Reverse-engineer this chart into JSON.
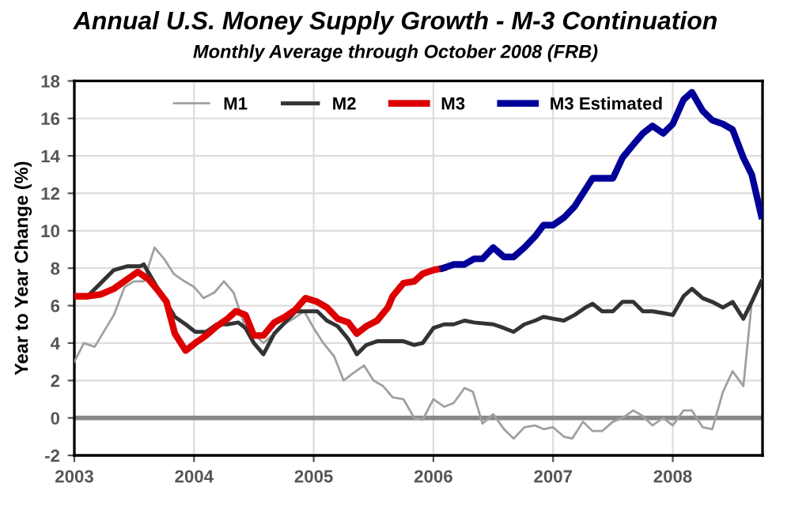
{
  "chart_data": {
    "type": "line",
    "title": "Annual U.S. Money Supply Growth - M-3 Continuation",
    "subtitle": "Monthly Average through October 2008 (FRB)",
    "ylabel": "Year to Year Change (%)",
    "xlim": [
      2003,
      2008.75
    ],
    "xticks": [
      2003,
      2004,
      2005,
      2006,
      2007,
      2008
    ],
    "ylim": [
      -2,
      18
    ],
    "yticks": [
      -2,
      0,
      2,
      4,
      6,
      8,
      10,
      12,
      14,
      16,
      18
    ],
    "grid": true,
    "legend": "top",
    "marker": "none",
    "line_style": "solid",
    "ref_lines": [
      {
        "axis": "y",
        "value": 0,
        "color": "#888888"
      }
    ],
    "series": [
      {
        "name": "M1",
        "color": "#a0a0a0",
        "x": [
          2003.0,
          2003.08,
          2003.17,
          2003.33,
          2003.42,
          2003.5,
          2003.58,
          2003.67,
          2003.75,
          2003.83,
          2003.92,
          2004.0,
          2004.08,
          2004.17,
          2004.25,
          2004.33,
          2004.42,
          2004.5,
          2004.58,
          2004.67,
          2004.75,
          2004.83,
          2004.92,
          2005.0,
          2005.08,
          2005.17,
          2005.25,
          2005.33,
          2005.42,
          2005.5,
          2005.58,
          2005.66,
          2005.75,
          2005.84,
          2005.91,
          2006.0,
          2006.09,
          2006.17,
          2006.26,
          2006.33,
          2006.41,
          2006.5,
          2006.59,
          2006.67,
          2006.76,
          2006.85,
          2006.92,
          2007.0,
          2007.09,
          2007.16,
          2007.25,
          2007.33,
          2007.41,
          2007.5,
          2007.58,
          2007.67,
          2007.75,
          2007.83,
          2007.92,
          2008.0,
          2008.09,
          2008.16,
          2008.25,
          2008.33,
          2008.42,
          2008.5,
          2008.59,
          2008.66,
          2008.74
        ],
        "values": [
          3.0,
          4.0,
          3.8,
          5.5,
          7.0,
          7.3,
          7.3,
          9.1,
          8.5,
          7.7,
          7.3,
          7.0,
          6.4,
          6.7,
          7.3,
          6.7,
          5.0,
          4.5,
          4.0,
          4.5,
          5.0,
          5.3,
          5.7,
          4.8,
          4.0,
          3.3,
          2.0,
          2.4,
          2.8,
          2.0,
          1.7,
          1.1,
          1.0,
          0.0,
          -0.1,
          1.0,
          0.6,
          0.8,
          1.6,
          1.4,
          -0.3,
          0.2,
          -0.6,
          -1.1,
          -0.5,
          -0.4,
          -0.6,
          -0.5,
          -1.0,
          -1.1,
          -0.2,
          -0.7,
          -0.7,
          -0.2,
          0.0,
          0.4,
          0.1,
          -0.4,
          0.0,
          -0.4,
          0.4,
          0.4,
          -0.5,
          -0.6,
          1.4,
          2.5,
          1.7,
          6.2,
          7.4
        ]
      },
      {
        "name": "M2",
        "color": "#333333",
        "x": [
          2003.0,
          2003.11,
          2003.22,
          2003.33,
          2003.44,
          2003.55,
          2003.58,
          2003.68,
          2003.84,
          2003.93,
          2004.01,
          2004.1,
          2004.19,
          2004.28,
          2004.37,
          2004.43,
          2004.5,
          2004.58,
          2004.67,
          2004.76,
          2004.85,
          2004.94,
          2005.03,
          2005.11,
          2005.2,
          2005.29,
          2005.36,
          2005.44,
          2005.53,
          2005.62,
          2005.75,
          2005.84,
          2005.91,
          2006.0,
          2006.09,
          2006.17,
          2006.26,
          2006.34,
          2006.5,
          2006.59,
          2006.67,
          2006.76,
          2006.85,
          2006.92,
          2007.0,
          2007.09,
          2007.18,
          2007.27,
          2007.33,
          2007.41,
          2007.5,
          2007.58,
          2007.67,
          2007.75,
          2007.83,
          2007.92,
          2008.0,
          2008.09,
          2008.16,
          2008.25,
          2008.33,
          2008.42,
          2008.5,
          2008.59,
          2008.66,
          2008.74
        ],
        "values": [
          6.5,
          6.5,
          7.2,
          7.9,
          8.1,
          8.1,
          8.2,
          7.1,
          5.4,
          5.0,
          4.6,
          4.6,
          5.0,
          5.0,
          5.1,
          4.8,
          4.0,
          3.4,
          4.5,
          5.1,
          5.7,
          5.7,
          5.7,
          5.2,
          4.9,
          4.2,
          3.4,
          3.9,
          4.1,
          4.1,
          4.1,
          3.9,
          4.0,
          4.8,
          5.0,
          5.0,
          5.2,
          5.1,
          5.0,
          4.8,
          4.6,
          5.0,
          5.2,
          5.4,
          5.3,
          5.2,
          5.5,
          5.9,
          6.1,
          5.7,
          5.7,
          6.2,
          6.2,
          5.7,
          5.7,
          5.6,
          5.5,
          6.5,
          6.9,
          6.4,
          6.2,
          5.9,
          6.2,
          5.3,
          6.2,
          7.3
        ]
      },
      {
        "name": "M3",
        "color": "#dd0000",
        "x": [
          2003.0,
          2003.11,
          2003.22,
          2003.33,
          2003.44,
          2003.53,
          2003.62,
          2003.7,
          2003.77,
          2003.84,
          2003.93,
          2004.01,
          2004.1,
          2004.19,
          2004.28,
          2004.35,
          2004.43,
          2004.5,
          2004.58,
          2004.67,
          2004.76,
          2004.85,
          2004.93,
          2005.03,
          2005.11,
          2005.2,
          2005.29,
          2005.36,
          2005.44,
          2005.53,
          2005.62,
          2005.66,
          2005.75,
          2005.84,
          2005.91,
          2006.0,
          2006.08
        ],
        "values": [
          6.5,
          6.5,
          6.6,
          6.9,
          7.4,
          7.8,
          7.4,
          6.8,
          6.2,
          4.5,
          3.6,
          4.0,
          4.4,
          4.9,
          5.3,
          5.7,
          5.5,
          4.4,
          4.4,
          5.1,
          5.4,
          5.8,
          6.4,
          6.2,
          5.9,
          5.3,
          5.1,
          4.5,
          4.9,
          5.2,
          5.9,
          6.5,
          7.2,
          7.3,
          7.7,
          7.9,
          8.0
        ]
      },
      {
        "name": "M3 Estimated",
        "color": "#000099",
        "x": [
          2006.08,
          2006.17,
          2006.26,
          2006.34,
          2006.41,
          2006.5,
          2006.59,
          2006.67,
          2006.76,
          2006.85,
          2006.92,
          2007.0,
          2007.09,
          2007.18,
          2007.27,
          2007.33,
          2007.41,
          2007.5,
          2007.58,
          2007.67,
          2007.75,
          2007.83,
          2007.92,
          2008.0,
          2008.09,
          2008.16,
          2008.25,
          2008.33,
          2008.42,
          2008.5,
          2008.59,
          2008.66,
          2008.74
        ],
        "values": [
          8.0,
          8.2,
          8.2,
          8.5,
          8.5,
          9.1,
          8.6,
          8.6,
          9.1,
          9.7,
          10.3,
          10.3,
          10.7,
          11.3,
          12.2,
          12.8,
          12.8,
          12.8,
          13.9,
          14.6,
          15.2,
          15.6,
          15.2,
          15.7,
          17.0,
          17.4,
          16.4,
          15.9,
          15.7,
          15.4,
          13.9,
          13.0,
          10.8
        ]
      }
    ]
  }
}
